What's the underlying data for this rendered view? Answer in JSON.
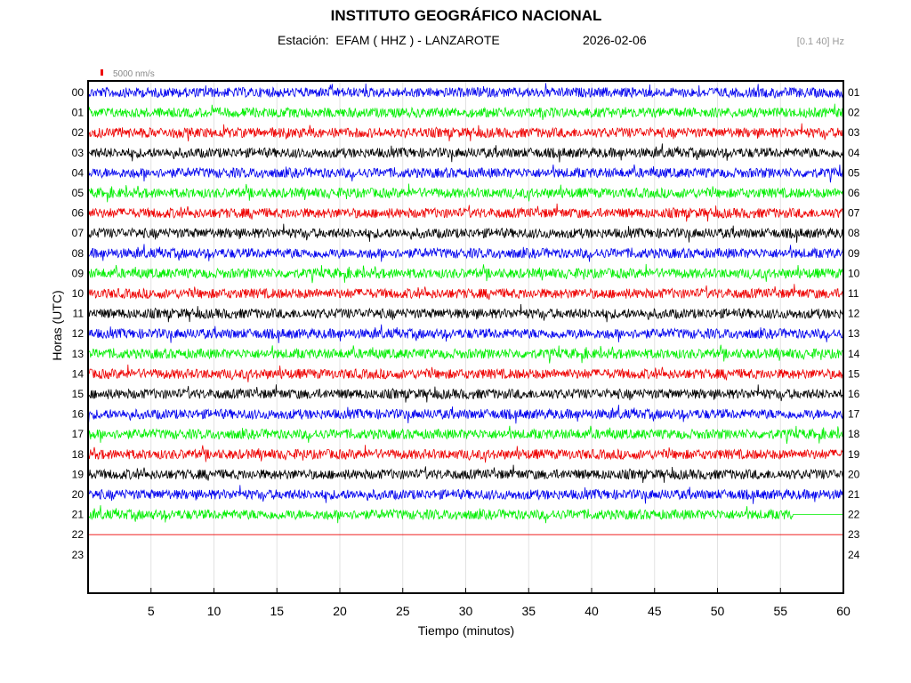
{
  "header": {
    "title": "INSTITUTO GEOGRÁFICO NACIONAL",
    "station": "Estación:  EFAM ( HHZ ) - LANZAROTE",
    "date": "2026-02-06",
    "filter": "[0.1 40] Hz"
  },
  "colors": {
    "blue": "#0000ee",
    "green": "#00ee00",
    "red": "#ee0000",
    "black": "#000000"
  },
  "chart_data": {
    "type": "line",
    "title": "INSTITUTO GEOGRÁFICO NACIONAL",
    "subtitle": "Estación:  EFAM ( HHZ ) - LANZAROTE",
    "xlabel": "Tiempo (minutos)",
    "ylabel": "Horas (UTC)",
    "xlim": [
      0,
      60
    ],
    "x_ticks": [
      "5",
      "10",
      "15",
      "20",
      "25",
      "30",
      "35",
      "40",
      "45",
      "50",
      "55",
      "60"
    ],
    "left_labels": [
      "00",
      "01",
      "02",
      "03",
      "04",
      "05",
      "06",
      "07",
      "08",
      "09",
      "10",
      "11",
      "12",
      "13",
      "14",
      "15",
      "16",
      "17",
      "18",
      "19",
      "20",
      "21",
      "22",
      "23"
    ],
    "right_labels": [
      "01",
      "02",
      "03",
      "04",
      "05",
      "06",
      "07",
      "08",
      "09",
      "10",
      "11",
      "12",
      "13",
      "14",
      "15",
      "16",
      "17",
      "18",
      "19",
      "20",
      "21",
      "22",
      "23",
      "24"
    ],
    "scale_label": "5000 nm/s",
    "grid": true,
    "traces": [
      {
        "hour": 0,
        "color": "blue",
        "end_minute": 60
      },
      {
        "hour": 1,
        "color": "green",
        "end_minute": 60
      },
      {
        "hour": 2,
        "color": "red",
        "end_minute": 60
      },
      {
        "hour": 3,
        "color": "black",
        "end_minute": 60
      },
      {
        "hour": 4,
        "color": "blue",
        "end_minute": 60
      },
      {
        "hour": 5,
        "color": "green",
        "end_minute": 60
      },
      {
        "hour": 6,
        "color": "red",
        "end_minute": 60
      },
      {
        "hour": 7,
        "color": "black",
        "end_minute": 60
      },
      {
        "hour": 8,
        "color": "blue",
        "end_minute": 60
      },
      {
        "hour": 9,
        "color": "green",
        "end_minute": 60
      },
      {
        "hour": 10,
        "color": "red",
        "end_minute": 60
      },
      {
        "hour": 11,
        "color": "black",
        "end_minute": 60
      },
      {
        "hour": 12,
        "color": "blue",
        "end_minute": 60
      },
      {
        "hour": 13,
        "color": "green",
        "end_minute": 60
      },
      {
        "hour": 14,
        "color": "red",
        "end_minute": 60
      },
      {
        "hour": 15,
        "color": "black",
        "end_minute": 60
      },
      {
        "hour": 16,
        "color": "blue",
        "end_minute": 60
      },
      {
        "hour": 17,
        "color": "green",
        "end_minute": 60
      },
      {
        "hour": 18,
        "color": "red",
        "end_minute": 60
      },
      {
        "hour": 19,
        "color": "black",
        "end_minute": 60
      },
      {
        "hour": 20,
        "color": "blue",
        "end_minute": 60
      },
      {
        "hour": 21,
        "color": "green",
        "end_minute": 56
      },
      {
        "hour": 22,
        "color": "red",
        "end_minute": 0
      }
    ]
  }
}
